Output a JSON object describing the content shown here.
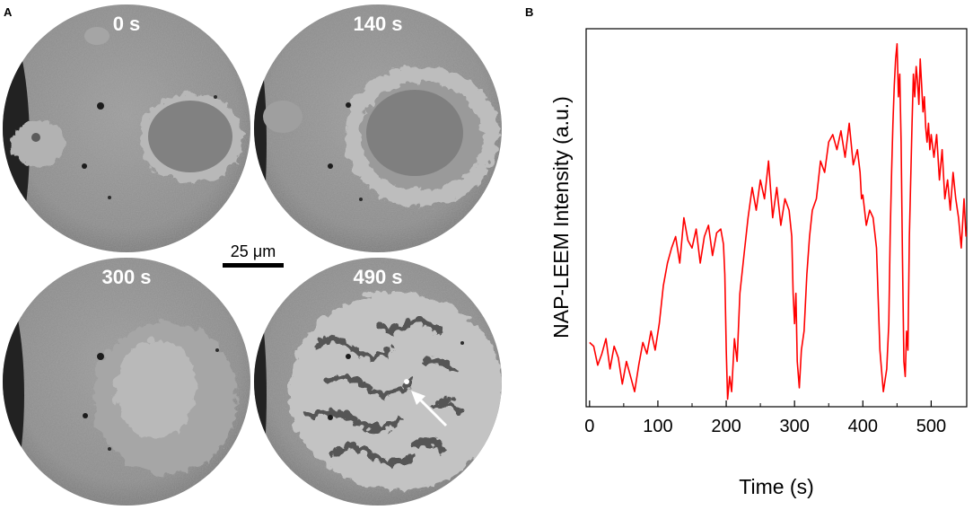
{
  "panel_a": {
    "letter": "A",
    "frames": [
      {
        "label": "0 s"
      },
      {
        "label": "140 s"
      },
      {
        "label": "300 s"
      },
      {
        "label": "490 s"
      }
    ],
    "scale_bar": {
      "label": "25 μm"
    }
  },
  "panel_b": {
    "letter": "B"
  },
  "chart_data": {
    "type": "line",
    "xlabel": "Time (s)",
    "ylabel": "NAP-LEEM Intensity (a.u.)",
    "xlim": [
      -5,
      552
    ],
    "ylim": [
      0,
      1
    ],
    "x_ticks": [
      0,
      100,
      200,
      300,
      400,
      500
    ],
    "y_ticks_labeled": false,
    "grid": false,
    "series": [
      {
        "color": "#ff0000",
        "x": [
          0,
          6,
          12,
          18,
          24,
          30,
          36,
          42,
          48,
          54,
          60,
          66,
          72,
          78,
          84,
          90,
          96,
          102,
          108,
          114,
          120,
          126,
          132,
          138,
          144,
          150,
          156,
          162,
          168,
          174,
          180,
          186,
          192,
          196,
          198,
          200,
          202,
          205,
          208,
          212,
          216,
          220,
          226,
          232,
          238,
          244,
          250,
          256,
          262,
          268,
          274,
          280,
          286,
          292,
          296,
          298,
          300,
          302,
          304,
          307,
          310,
          314,
          318,
          322,
          326,
          332,
          338,
          344,
          350,
          356,
          362,
          368,
          374,
          380,
          386,
          392,
          396,
          398,
          400,
          405,
          410,
          415,
          420,
          425,
          430,
          435,
          438,
          440,
          442,
          444,
          446,
          448,
          450,
          452,
          454,
          456,
          458,
          460,
          462,
          464,
          466,
          468,
          470,
          472,
          474,
          476,
          478,
          480,
          482,
          484,
          486,
          488,
          490,
          492,
          494,
          496,
          498,
          500,
          504,
          508,
          512,
          516,
          520,
          524,
          528,
          532,
          536,
          540,
          544,
          548,
          551
        ],
        "y": [
          0.17,
          0.16,
          0.11,
          0.14,
          0.18,
          0.1,
          0.16,
          0.13,
          0.06,
          0.12,
          0.08,
          0.04,
          0.11,
          0.17,
          0.14,
          0.2,
          0.15,
          0.22,
          0.32,
          0.38,
          0.42,
          0.45,
          0.38,
          0.5,
          0.44,
          0.42,
          0.47,
          0.38,
          0.45,
          0.48,
          0.4,
          0.46,
          0.47,
          0.43,
          0.35,
          0.15,
          0.02,
          0.08,
          0.04,
          0.18,
          0.12,
          0.3,
          0.4,
          0.5,
          0.58,
          0.52,
          0.6,
          0.55,
          0.65,
          0.5,
          0.58,
          0.48,
          0.55,
          0.52,
          0.45,
          0.3,
          0.22,
          0.3,
          0.12,
          0.05,
          0.15,
          0.2,
          0.35,
          0.45,
          0.52,
          0.55,
          0.65,
          0.62,
          0.7,
          0.72,
          0.68,
          0.73,
          0.66,
          0.75,
          0.64,
          0.68,
          0.62,
          0.55,
          0.56,
          0.48,
          0.52,
          0.5,
          0.42,
          0.15,
          0.04,
          0.1,
          0.22,
          0.45,
          0.62,
          0.75,
          0.85,
          0.92,
          0.96,
          0.82,
          0.88,
          0.7,
          0.4,
          0.12,
          0.08,
          0.2,
          0.15,
          0.45,
          0.6,
          0.75,
          0.88,
          0.82,
          0.9,
          0.86,
          0.8,
          0.92,
          0.85,
          0.78,
          0.82,
          0.74,
          0.7,
          0.75,
          0.68,
          0.72,
          0.66,
          0.72,
          0.6,
          0.68,
          0.55,
          0.6,
          0.52,
          0.62,
          0.55,
          0.5,
          0.42,
          0.55,
          0.45
        ]
      }
    ]
  }
}
